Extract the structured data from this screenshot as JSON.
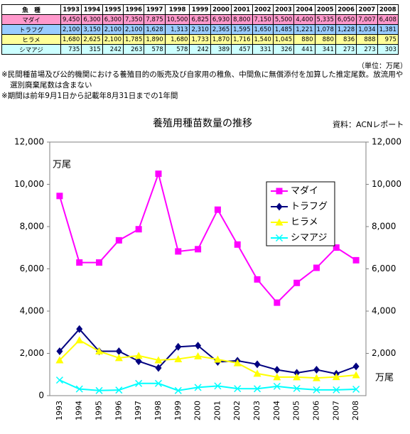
{
  "table": {
    "header": [
      "魚　種",
      "1993",
      "1994",
      "1995",
      "1996",
      "1997",
      "1998",
      "1999",
      "2000",
      "2001",
      "2002",
      "2003",
      "2004",
      "2005",
      "2006",
      "2007",
      "2008"
    ],
    "rows": [
      {
        "color": "#ff99cc",
        "cells": [
          "マダイ",
          "9,450",
          "6,300",
          "6,300",
          "7,350",
          "7,875",
          "10,500",
          "6,825",
          "6,930",
          "8,800",
          "7,150",
          "5,500",
          "4,400",
          "5,335",
          "6,050",
          "7,007",
          "6,408"
        ]
      },
      {
        "color": "#99ccff",
        "cells": [
          "トラフグ",
          "2,100",
          "3,150",
          "2,100",
          "2,100",
          "1,628",
          "1,313",
          "2,310",
          "2,365",
          "1,595",
          "1,650",
          "1,485",
          "1,221",
          "1,078",
          "1,228",
          "1,034",
          "1,381"
        ]
      },
      {
        "color": "#ffff99",
        "cells": [
          "ヒラメ",
          "1,680",
          "2,625",
          "2,100",
          "1,785",
          "1,890",
          "1,680",
          "1,733",
          "1,870",
          "1,716",
          "1,540",
          "1,045",
          "880",
          "880",
          "836",
          "888",
          "975"
        ]
      },
      {
        "color": "#ccffff",
        "cells": [
          "シマアジ",
          "735",
          "315",
          "242",
          "263",
          "578",
          "578",
          "242",
          "389",
          "457",
          "331",
          "326",
          "441",
          "341",
          "273",
          "273",
          "303"
        ]
      }
    ],
    "unit": "（単位：万尾）"
  },
  "notes": [
    "※民間種苗場及び公的機関における養殖目的の販売及び自家用の稚魚、中間魚に無償添付を加算した推定尾数。放流用や選別廃棄尾数は含まない",
    "※期間は前年9月1日から記載年8月31日までの1年間"
  ],
  "chart_data": {
    "type": "line",
    "title": "養殖用種苗数量の推移",
    "source": "資料：ACNレポート",
    "y_label": "万尾",
    "y2_label": "万尾",
    "categories": [
      "1993",
      "1994",
      "1995",
      "1996",
      "1997",
      "1998",
      "1999",
      "2000",
      "2001",
      "2002",
      "2003",
      "2004",
      "2005",
      "2006",
      "2007",
      "2008"
    ],
    "series": [
      {
        "name": "マダイ",
        "color": "#ff00ff",
        "marker": "square",
        "values": [
          9450,
          6300,
          6300,
          7350,
          7875,
          10500,
          6825,
          6930,
          8800,
          7150,
          5500,
          4400,
          5335,
          6050,
          7007,
          6408
        ]
      },
      {
        "name": "トラフグ",
        "color": "#000080",
        "marker": "diamond",
        "values": [
          2100,
          3150,
          2100,
          2100,
          1628,
          1313,
          2310,
          2365,
          1595,
          1650,
          1485,
          1221,
          1078,
          1228,
          1034,
          1381
        ]
      },
      {
        "name": "ヒラメ",
        "color": "#ffff00",
        "marker": "triangle",
        "values": [
          1680,
          2625,
          2100,
          1785,
          1890,
          1680,
          1733,
          1870,
          1716,
          1540,
          1045,
          880,
          880,
          836,
          888,
          975
        ]
      },
      {
        "name": "シマアジ",
        "color": "#00ffff",
        "marker": "x",
        "values": [
          735,
          315,
          242,
          263,
          578,
          578,
          242,
          389,
          457,
          331,
          326,
          441,
          341,
          273,
          273,
          303
        ]
      }
    ],
    "ylim": [
      0,
      12000
    ],
    "yticks": [
      0,
      {
        "value": 2000,
        "label": "2,000"
      },
      {
        "value": 4000,
        "label": "4,000"
      },
      {
        "value": 6000,
        "label": "6,000"
      },
      {
        "value": 8000,
        "label": "8,000"
      },
      {
        "value": 10000,
        "label": "10,000"
      },
      {
        "value": 12000,
        "label": "12,000"
      }
    ],
    "y2lim": [
      0,
      12000
    ],
    "y2ticks": [
      {
        "value": 2000,
        "label": "2,000"
      },
      {
        "value": 4000,
        "label": "4,000"
      },
      {
        "value": 6000,
        "label": "6,000"
      },
      {
        "value": 8000,
        "label": "8,000"
      },
      {
        "value": 10000,
        "label": "10,000"
      },
      {
        "value": 12000,
        "label": "12,000"
      }
    ],
    "grid": false,
    "legend": "upper right"
  }
}
